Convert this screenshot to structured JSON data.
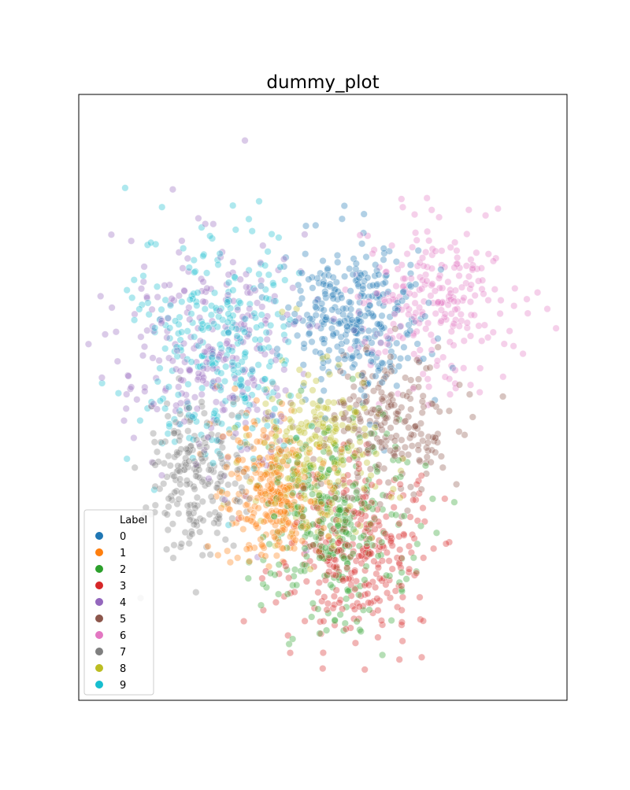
{
  "chart_data": {
    "type": "scatter",
    "title": "dummy_plot",
    "xlabel": "",
    "ylabel": "",
    "axes_ticks": "none",
    "grid": false,
    "legend": {
      "title": "Label",
      "placement": "lower-left",
      "entries": [
        "0",
        "1",
        "2",
        "3",
        "4",
        "5",
        "6",
        "7",
        "8",
        "9"
      ]
    },
    "xlim": [
      0,
      100
    ],
    "ylim": [
      0,
      100
    ],
    "point_alpha": 0.35,
    "clusters": [
      {
        "label": "0",
        "color": "#1f77b4",
        "center": [
          56,
          63
        ],
        "spread": [
          7.0,
          6.0
        ],
        "count": 320
      },
      {
        "label": "1",
        "color": "#ff7f0e",
        "center": [
          40,
          34
        ],
        "spread": [
          5.0,
          5.5
        ],
        "count": 300
      },
      {
        "label": "2",
        "color": "#2ca02c",
        "center": [
          53,
          30
        ],
        "spread": [
          8.0,
          9.0
        ],
        "count": 320
      },
      {
        "label": "3",
        "color": "#d62728",
        "center": [
          57,
          24
        ],
        "spread": [
          7.0,
          7.0
        ],
        "count": 300
      },
      {
        "label": "4",
        "color": "#9467bd",
        "center": [
          27,
          58
        ],
        "spread": [
          10.0,
          10.0
        ],
        "count": 280
      },
      {
        "label": "5",
        "color": "#8c564b",
        "center": [
          63,
          46
        ],
        "spread": [
          7.0,
          6.0
        ],
        "count": 220
      },
      {
        "label": "6",
        "color": "#e377c2",
        "center": [
          73,
          66
        ],
        "spread": [
          8.0,
          7.0
        ],
        "count": 240
      },
      {
        "label": "7",
        "color": "#7f7f7f",
        "center": [
          24,
          38
        ],
        "spread": [
          5.0,
          7.0
        ],
        "count": 220
      },
      {
        "label": "8",
        "color": "#bcbd22",
        "center": [
          49,
          41
        ],
        "spread": [
          7.0,
          7.0
        ],
        "count": 250
      },
      {
        "label": "9",
        "color": "#17becf",
        "center": [
          29,
          58
        ],
        "spread": [
          8.0,
          10.0
        ],
        "count": 300
      }
    ]
  }
}
